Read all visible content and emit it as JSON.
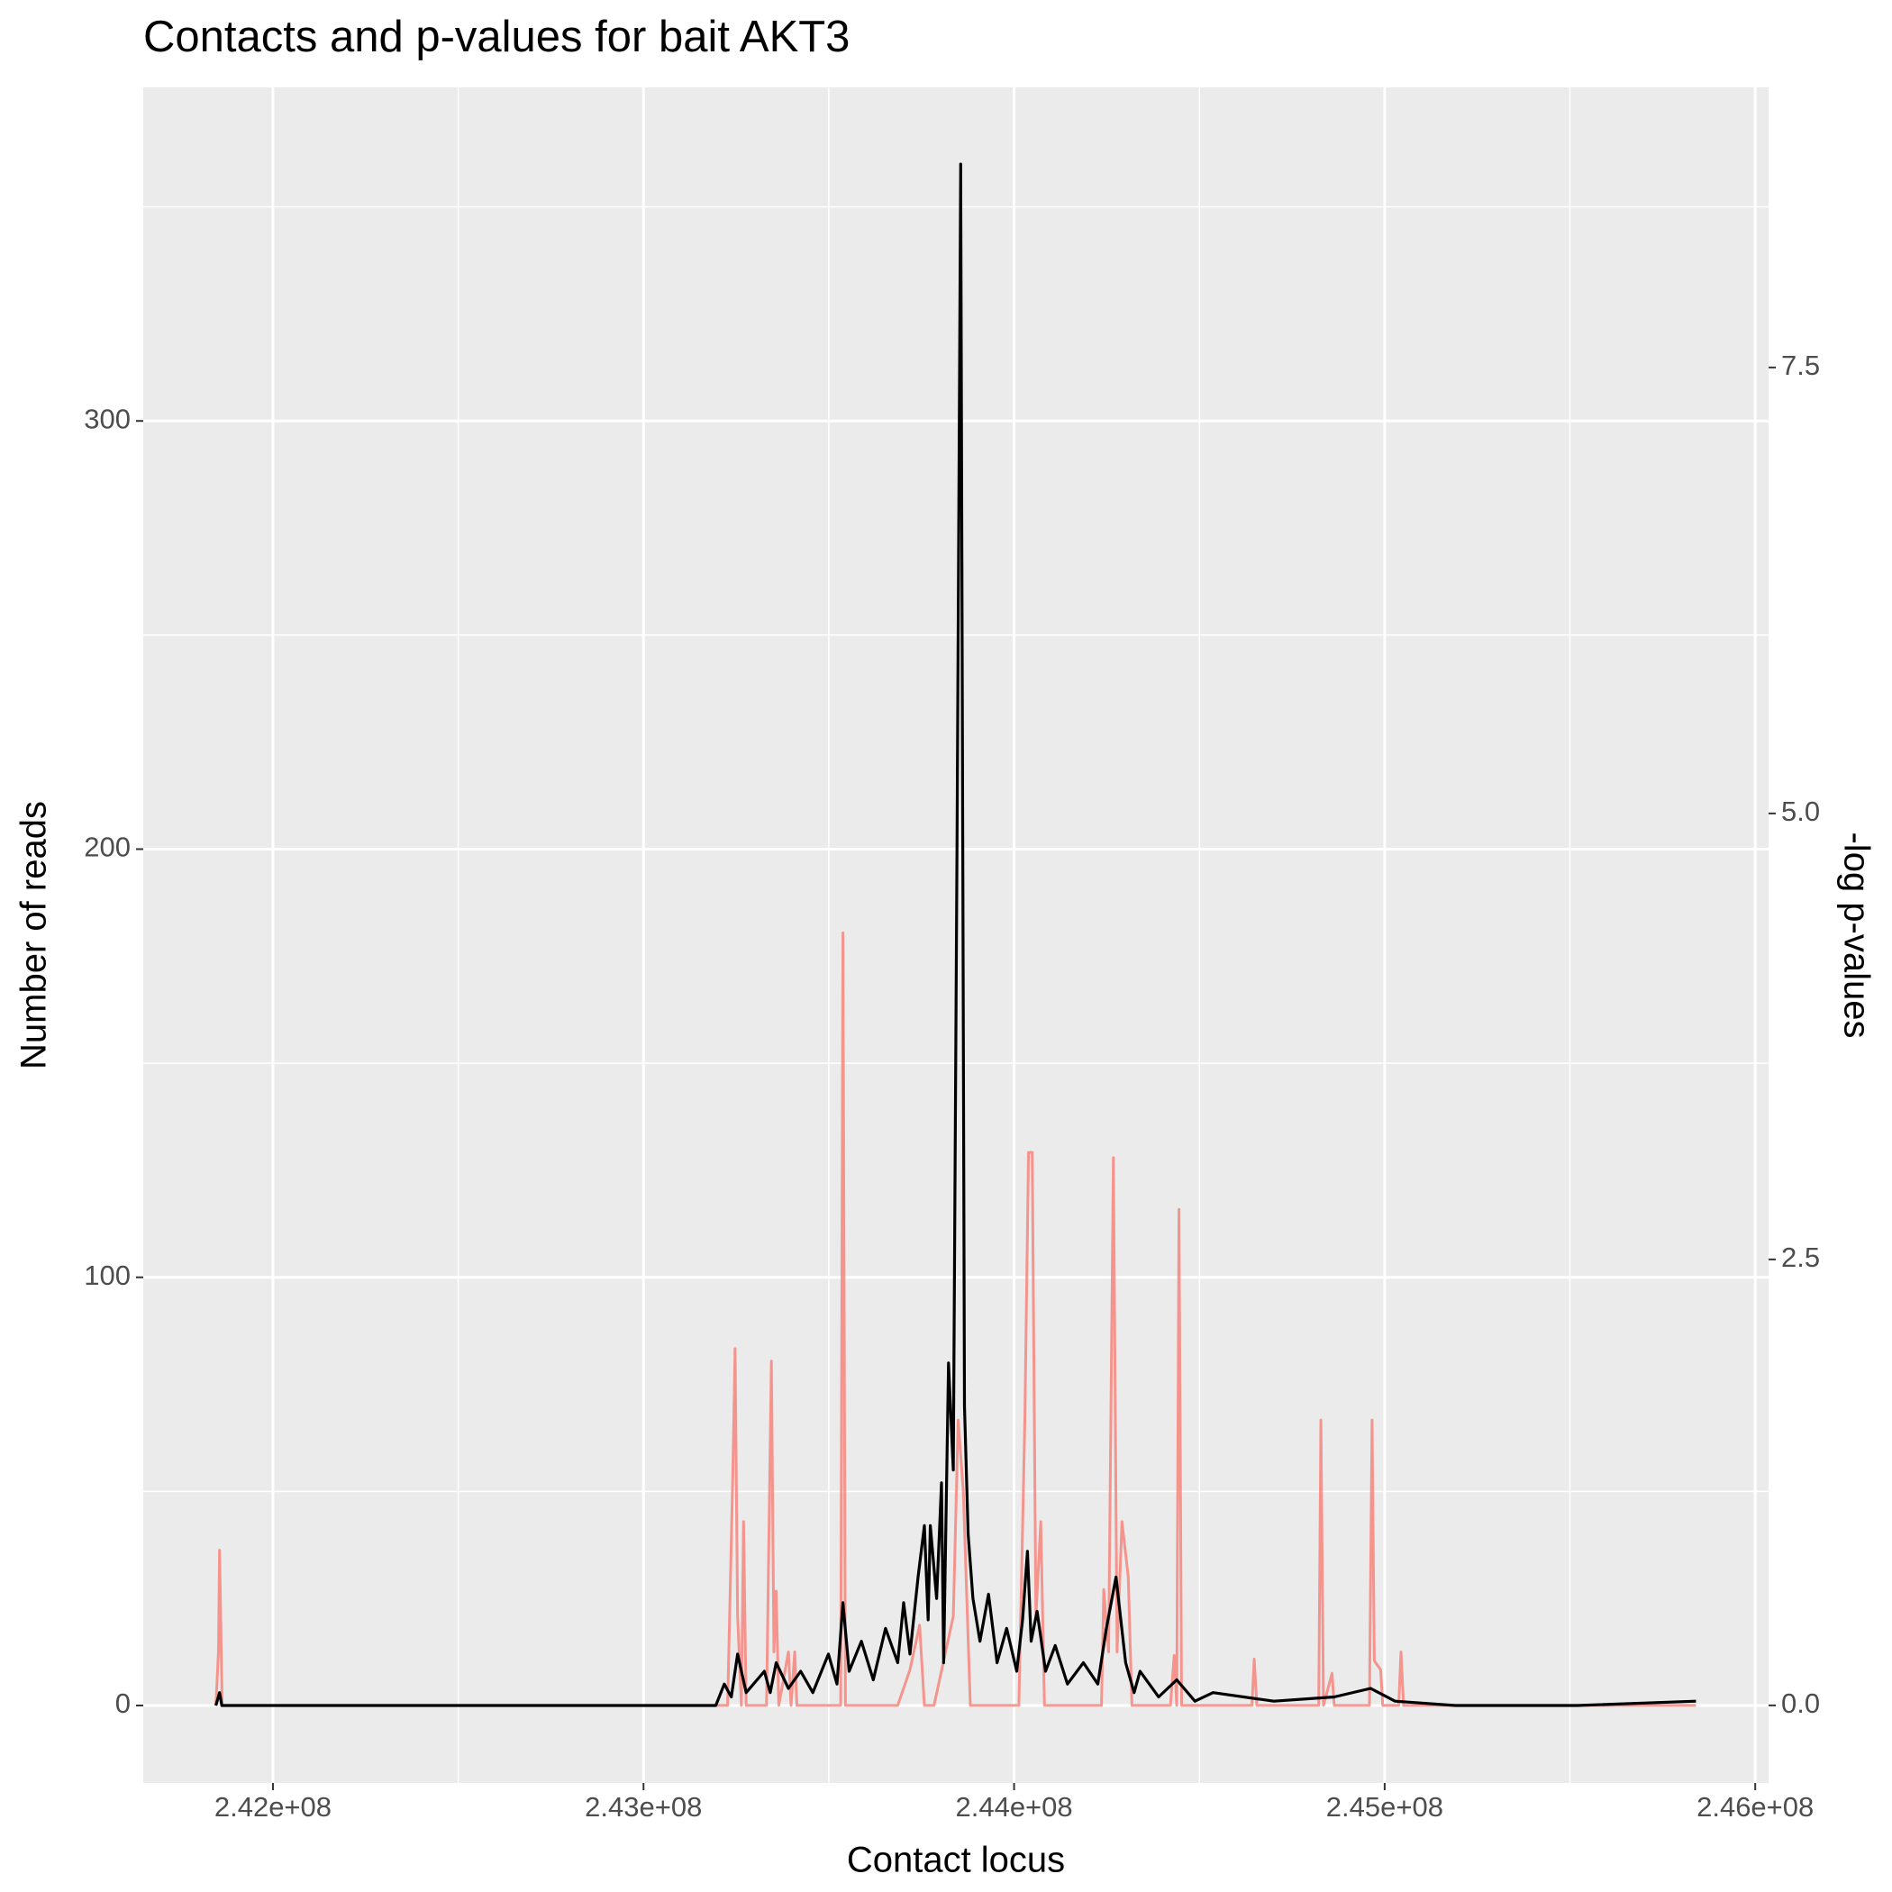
{
  "chart_data": {
    "type": "line",
    "title": "Contacts and p-values for bait AKT3",
    "x_label": "Contact locus",
    "y_label": "Number of reads",
    "y2_label": "-log p-values",
    "xlim": [
      241650000,
      246036000
    ],
    "xticks": [
      {
        "value": 242000000,
        "label": "2.42e+08"
      },
      {
        "value": 243000000,
        "label": "2.43e+08"
      },
      {
        "value": 244000000,
        "label": "2.44e+08"
      },
      {
        "value": 245000000,
        "label": "2.45e+08"
      },
      {
        "value": 246000000,
        "label": "2.46e+08"
      }
    ],
    "x_minor_ticks": [
      242500000,
      243500000,
      244500000,
      245500000
    ],
    "ylim": [
      -18.1,
      377.9
    ],
    "yticks": [
      0,
      100,
      200,
      300
    ],
    "y_minor_ticks": [
      50,
      150,
      250,
      350
    ],
    "y2lim": [
      -0.435,
      9.07
    ],
    "y2ticks": [
      {
        "value": 0,
        "label": "0.0"
      },
      {
        "value": 2.5,
        "label": "2.5"
      },
      {
        "value": 5,
        "label": "5.0"
      },
      {
        "value": 7.5,
        "label": "7.5"
      }
    ],
    "grid": true,
    "series": [
      {
        "name": "-log p-values",
        "color": "#F8766D",
        "axis": "y2",
        "x": [
          241846000,
          241853000,
          241856000,
          241863000,
          243227000,
          243241000,
          243247000,
          243254000,
          243264000,
          243270000,
          243277000,
          243332000,
          243345000,
          243352000,
          243358000,
          243365000,
          243391000,
          243398000,
          243408000,
          243414000,
          243532000,
          243538000,
          243545000,
          243686000,
          243719000,
          243745000,
          243758000,
          243784000,
          243836000,
          243849000,
          243863000,
          243882000,
          244013000,
          244029000,
          244039000,
          244049000,
          244059000,
          244072000,
          244082000,
          244236000,
          244242000,
          244255000,
          244268000,
          244278000,
          244291000,
          244308000,
          244318000,
          244422000,
          244432000,
          244439000,
          244445000,
          244452000,
          244642000,
          244648000,
          244655000,
          244822000,
          244828000,
          244835000,
          244858000,
          244864000,
          244959000,
          244966000,
          244972000,
          244989000,
          244995000,
          245038000,
          245044000,
          245051000,
          245840000
        ],
        "values": [
          0,
          0.3,
          0.87,
          0,
          0,
          1.3,
          2.0,
          0.5,
          0,
          1.03,
          0,
          0,
          1.93,
          0.3,
          0.64,
          0,
          0.3,
          0,
          0.3,
          0,
          0,
          4.33,
          0,
          0,
          0.2,
          0.45,
          0,
          0,
          0.5,
          1.6,
          1.2,
          0,
          0,
          1.6,
          3.1,
          3.1,
          0.5,
          1.03,
          0,
          0,
          0.65,
          0.3,
          3.07,
          0.3,
          1.03,
          0.72,
          0,
          0,
          0.28,
          0,
          2.78,
          0,
          0,
          0.26,
          0,
          0,
          1.6,
          0,
          0.18,
          0,
          0,
          1.6,
          0.25,
          0.2,
          0,
          0,
          0.3,
          0,
          0
        ]
      },
      {
        "name": "Number of reads",
        "color": "#000000",
        "axis": "y",
        "x": [
          241846000,
          241856000,
          241862000,
          242245000,
          242900000,
          243195000,
          243218000,
          243237000,
          243254000,
          243277000,
          243326000,
          243342000,
          243358000,
          243391000,
          243424000,
          243457000,
          243499000,
          243522000,
          243538000,
          243555000,
          243588000,
          243620000,
          243653000,
          243686000,
          243702000,
          243719000,
          243741000,
          243758000,
          243768000,
          243774000,
          243791000,
          243804000,
          243810000,
          243823000,
          243836000,
          243846000,
          243856000,
          243866000,
          243876000,
          243889000,
          243908000,
          243931000,
          243954000,
          243980000,
          244007000,
          244023000,
          244036000,
          244046000,
          244062000,
          244085000,
          244111000,
          244144000,
          244187000,
          244226000,
          244249000,
          244275000,
          244301000,
          244324000,
          244340000,
          244390000,
          244439000,
          244488000,
          244537000,
          244701000,
          244864000,
          244962000,
          245028000,
          245191000,
          245519000,
          245840000
        ],
        "values": [
          0,
          3,
          0,
          0,
          0,
          0,
          5,
          2,
          12,
          3,
          8,
          3,
          10,
          4,
          8,
          3,
          12,
          5,
          24,
          8,
          15,
          6,
          18,
          10,
          24,
          12,
          30,
          42,
          20,
          42,
          25,
          52,
          10,
          80,
          55,
          200,
          360,
          70,
          40,
          25,
          15,
          26,
          10,
          18,
          8,
          20,
          36,
          15,
          22,
          8,
          14,
          5,
          10,
          5,
          18,
          30,
          10,
          3,
          8,
          2,
          6,
          1,
          3,
          1,
          2,
          4,
          1,
          0,
          0,
          1
        ]
      }
    ]
  }
}
